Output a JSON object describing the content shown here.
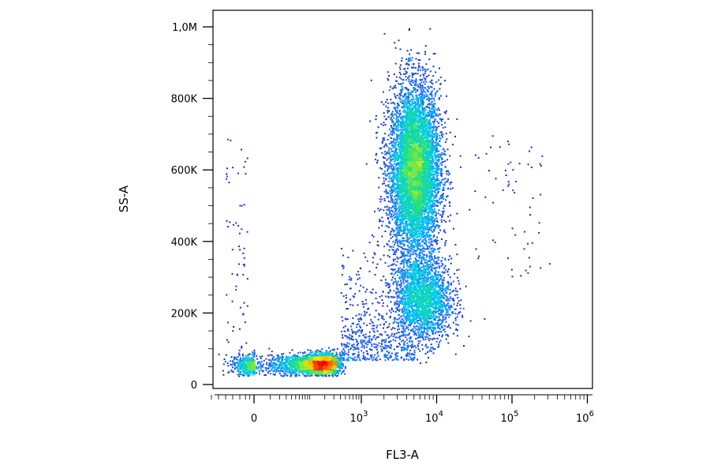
{
  "chart_data": {
    "type": "scatter",
    "subtype": "flow-cytometry-density-dot-plot",
    "xlabel": "FL3-A",
    "ylabel": "SS-A",
    "x_scale": "biexponential",
    "y_scale": "linear",
    "ylim": [
      0,
      1050000
    ],
    "x_range_approx": [
      -300,
      1000000
    ],
    "y_ticks": [
      {
        "value": 0,
        "label": "0"
      },
      {
        "value": 200000,
        "label": "200K"
      },
      {
        "value": 400000,
        "label": "400K"
      },
      {
        "value": 600000,
        "label": "600K"
      },
      {
        "value": 800000,
        "label": "800K"
      },
      {
        "value": 1000000,
        "label": "1,0M"
      }
    ],
    "x_ticks": [
      {
        "value": 0,
        "base": "0",
        "exp": ""
      },
      {
        "value": 1000,
        "base": "10",
        "exp": "3"
      },
      {
        "value": 10000,
        "base": "10",
        "exp": "4"
      },
      {
        "value": 100000,
        "base": "10",
        "exp": "5"
      },
      {
        "value": 1000000,
        "base": "10",
        "exp": "6"
      }
    ],
    "grid": false,
    "legend": "none",
    "colormap": [
      "#0a0aa0",
      "#1f5cf0",
      "#00c8f0",
      "#20e080",
      "#e6f000",
      "#ff8c00",
      "#f00000"
    ],
    "populations": [
      {
        "center_fl3": 5000,
        "center_ss": 600000,
        "spread_log10": 0.18,
        "spread_ss": 130000,
        "density": "high"
      },
      {
        "center_fl3": 6500,
        "center_ss": 240000,
        "spread_log10": 0.2,
        "spread_ss": 60000,
        "density": "medium"
      },
      {
        "center_fl3": 120,
        "center_ss": 55000,
        "spread_log10": 0.3,
        "spread_ss": 20000,
        "density": "very high"
      }
    ]
  }
}
